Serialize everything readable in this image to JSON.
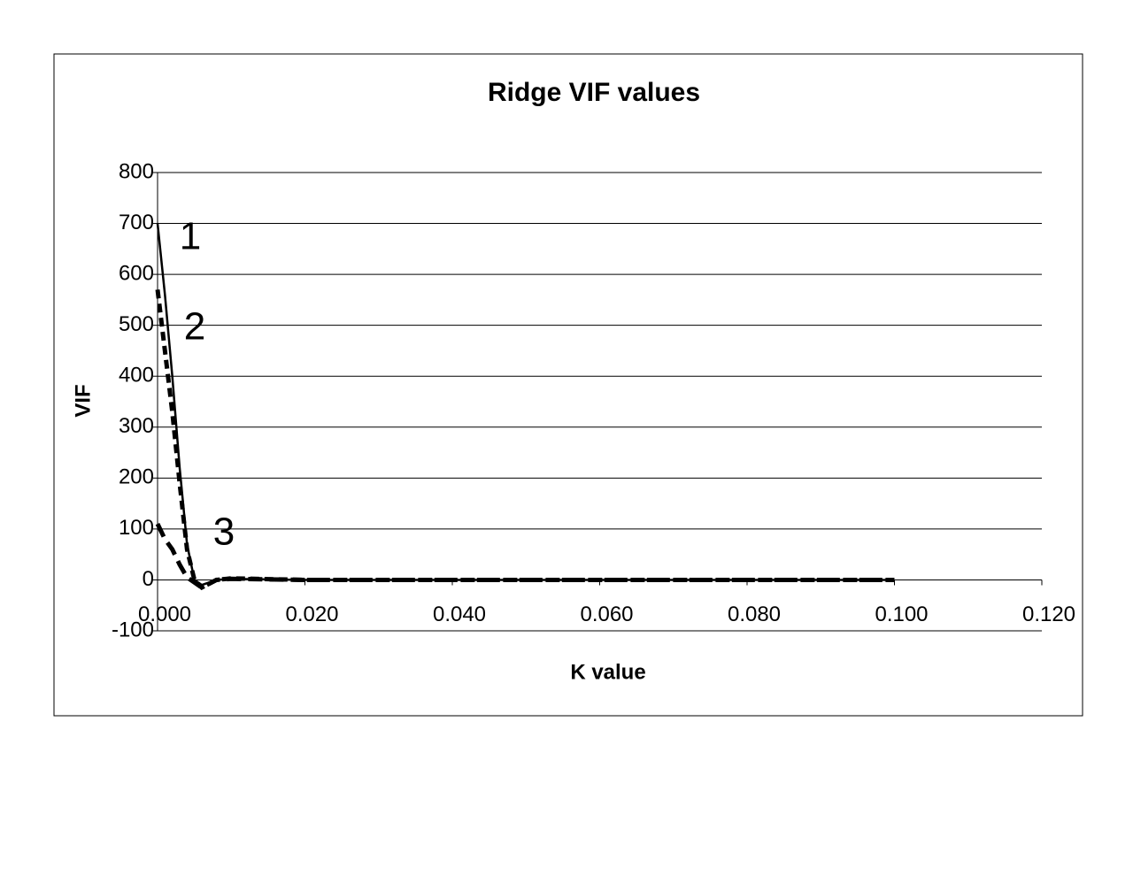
{
  "chart_data": {
    "type": "line",
    "title": "Ridge VIF values",
    "x_label": "K value",
    "y_label": "VIF",
    "x": [
      0,
      0.001,
      0.002,
      0.003,
      0.004,
      0.005,
      0.006,
      0.008,
      0.01,
      0.02,
      0.03,
      0.04,
      0.05,
      0.06,
      0.07,
      0.08,
      0.09,
      0.1
    ],
    "series": [
      {
        "name": "1",
        "color": "#000000",
        "style": "solid",
        "values": [
          700,
          560,
          400,
          220,
          70,
          0,
          -10,
          0,
          2,
          0,
          0,
          0,
          0,
          0,
          0,
          0,
          0,
          0
        ]
      },
      {
        "name": "2",
        "color": "#000000",
        "style": "dashed",
        "values": [
          570,
          450,
          330,
          190,
          60,
          0,
          -15,
          0,
          3,
          0,
          0,
          0,
          0,
          0,
          0,
          0,
          0,
          0
        ]
      },
      {
        "name": "3",
        "color": "#000000",
        "style": "dashed",
        "values": [
          110,
          80,
          60,
          30,
          5,
          -5,
          -15,
          0,
          2,
          0,
          0,
          0,
          0,
          0,
          0,
          0,
          0,
          0
        ]
      }
    ],
    "xlim": [
      0,
      0.12
    ],
    "xticks": [
      {
        "value": 0,
        "label": "0.000"
      },
      {
        "value": 0.02,
        "label": "0.020"
      },
      {
        "value": 0.04,
        "label": "0.040"
      },
      {
        "value": 0.06,
        "label": "0.060"
      },
      {
        "value": 0.08,
        "label": "0.080"
      },
      {
        "value": 0.1,
        "label": "0.100"
      },
      {
        "value": 0.12,
        "label": "0.120"
      }
    ],
    "ylim": [
      -100,
      800
    ],
    "yticks": [
      -100,
      0,
      100,
      200,
      300,
      400,
      500,
      600,
      700,
      800
    ],
    "grid": true
  }
}
